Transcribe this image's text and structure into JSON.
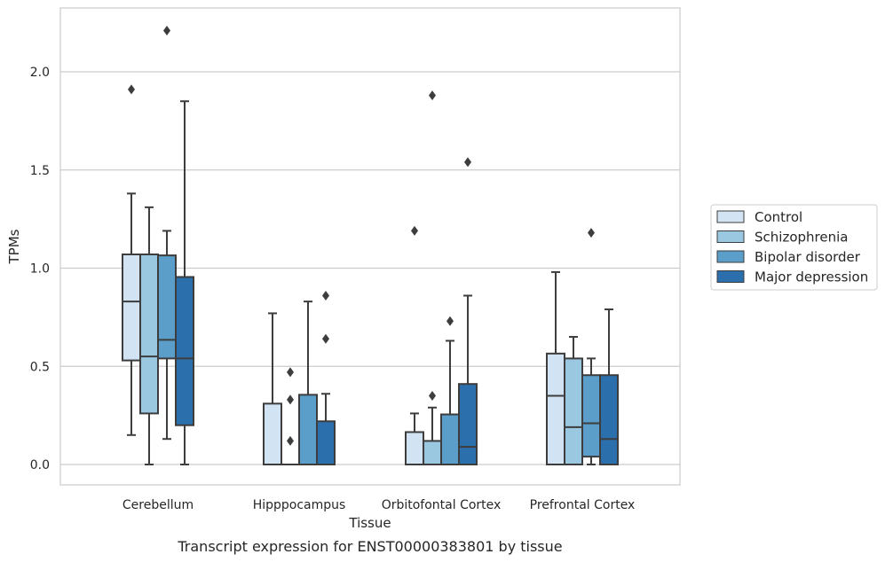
{
  "chart_data": {
    "type": "box",
    "xlabel": "Tissue",
    "ylabel": "TPMs",
    "caption": "Transcript expression for ENST00000383801 by tissue",
    "ylim": [
      -0.1,
      2.33
    ],
    "yticks": [
      0.0,
      0.5,
      1.0,
      1.5,
      2.0
    ],
    "ytick_labels": [
      "0.0",
      "0.5",
      "1.0",
      "1.5",
      "2.0"
    ],
    "grid": "horizontal",
    "legend_position": "right",
    "categories": [
      "Cerebellum",
      "Hipppocampus",
      "Orbitofontal Cortex",
      "Prefrontal Cortex"
    ],
    "series": [
      {
        "name": "Control",
        "color": "#d2e3f3",
        "boxes": [
          {
            "whislo": 0.15,
            "q1": 0.53,
            "med": 0.83,
            "q3": 1.07,
            "whishi": 1.38,
            "fliers": [
              1.91
            ]
          },
          {
            "whislo": 0.0,
            "q1": 0.0,
            "med": 0.0,
            "q3": 0.31,
            "whishi": 0.77,
            "fliers": []
          },
          {
            "whislo": 0.0,
            "q1": 0.0,
            "med": 0.0,
            "q3": 0.165,
            "whishi": 0.26,
            "fliers": [
              1.19
            ]
          },
          {
            "whislo": 0.0,
            "q1": 0.0,
            "med": 0.35,
            "q3": 0.565,
            "whishi": 0.98,
            "fliers": []
          }
        ]
      },
      {
        "name": "Schizophrenia",
        "color": "#9ac8e0",
        "boxes": [
          {
            "whislo": 0.0,
            "q1": 0.26,
            "med": 0.55,
            "q3": 1.07,
            "whishi": 1.31,
            "fliers": []
          },
          {
            "whislo": 0.0,
            "q1": 0.0,
            "med": 0.0,
            "q3": 0.0,
            "whishi": 0.0,
            "fliers": [
              0.12,
              0.33,
              0.47
            ]
          },
          {
            "whislo": 0.0,
            "q1": 0.0,
            "med": 0.0,
            "q3": 0.12,
            "whishi": 0.29,
            "fliers": [
              0.35,
              1.88
            ]
          },
          {
            "whislo": 0.0,
            "q1": 0.0,
            "med": 0.19,
            "q3": 0.54,
            "whishi": 0.65,
            "fliers": []
          }
        ]
      },
      {
        "name": "Bipolar disorder",
        "color": "#5a9ec9",
        "boxes": [
          {
            "whislo": 0.13,
            "q1": 0.54,
            "med": 0.635,
            "q3": 1.065,
            "whishi": 1.19,
            "fliers": [
              2.21
            ]
          },
          {
            "whislo": 0.0,
            "q1": 0.0,
            "med": 0.0,
            "q3": 0.355,
            "whishi": 0.83,
            "fliers": []
          },
          {
            "whislo": 0.0,
            "q1": 0.0,
            "med": 0.0,
            "q3": 0.255,
            "whishi": 0.63,
            "fliers": [
              0.73
            ]
          },
          {
            "whislo": 0.0,
            "q1": 0.04,
            "med": 0.21,
            "q3": 0.455,
            "whishi": 0.54,
            "fliers": [
              1.18
            ]
          }
        ]
      },
      {
        "name": "Major depression",
        "color": "#2c6fad",
        "boxes": [
          {
            "whislo": 0.0,
            "q1": 0.2,
            "med": 0.54,
            "q3": 0.955,
            "whishi": 1.85,
            "fliers": []
          },
          {
            "whislo": 0.0,
            "q1": 0.0,
            "med": 0.0,
            "q3": 0.22,
            "whishi": 0.36,
            "fliers": [
              0.64,
              0.86
            ]
          },
          {
            "whislo": 0.0,
            "q1": 0.0,
            "med": 0.09,
            "q3": 0.41,
            "whishi": 0.86,
            "fliers": [
              1.54
            ]
          },
          {
            "whislo": 0.0,
            "q1": 0.0,
            "med": 0.13,
            "q3": 0.455,
            "whishi": 0.79,
            "fliers": []
          }
        ]
      }
    ]
  }
}
